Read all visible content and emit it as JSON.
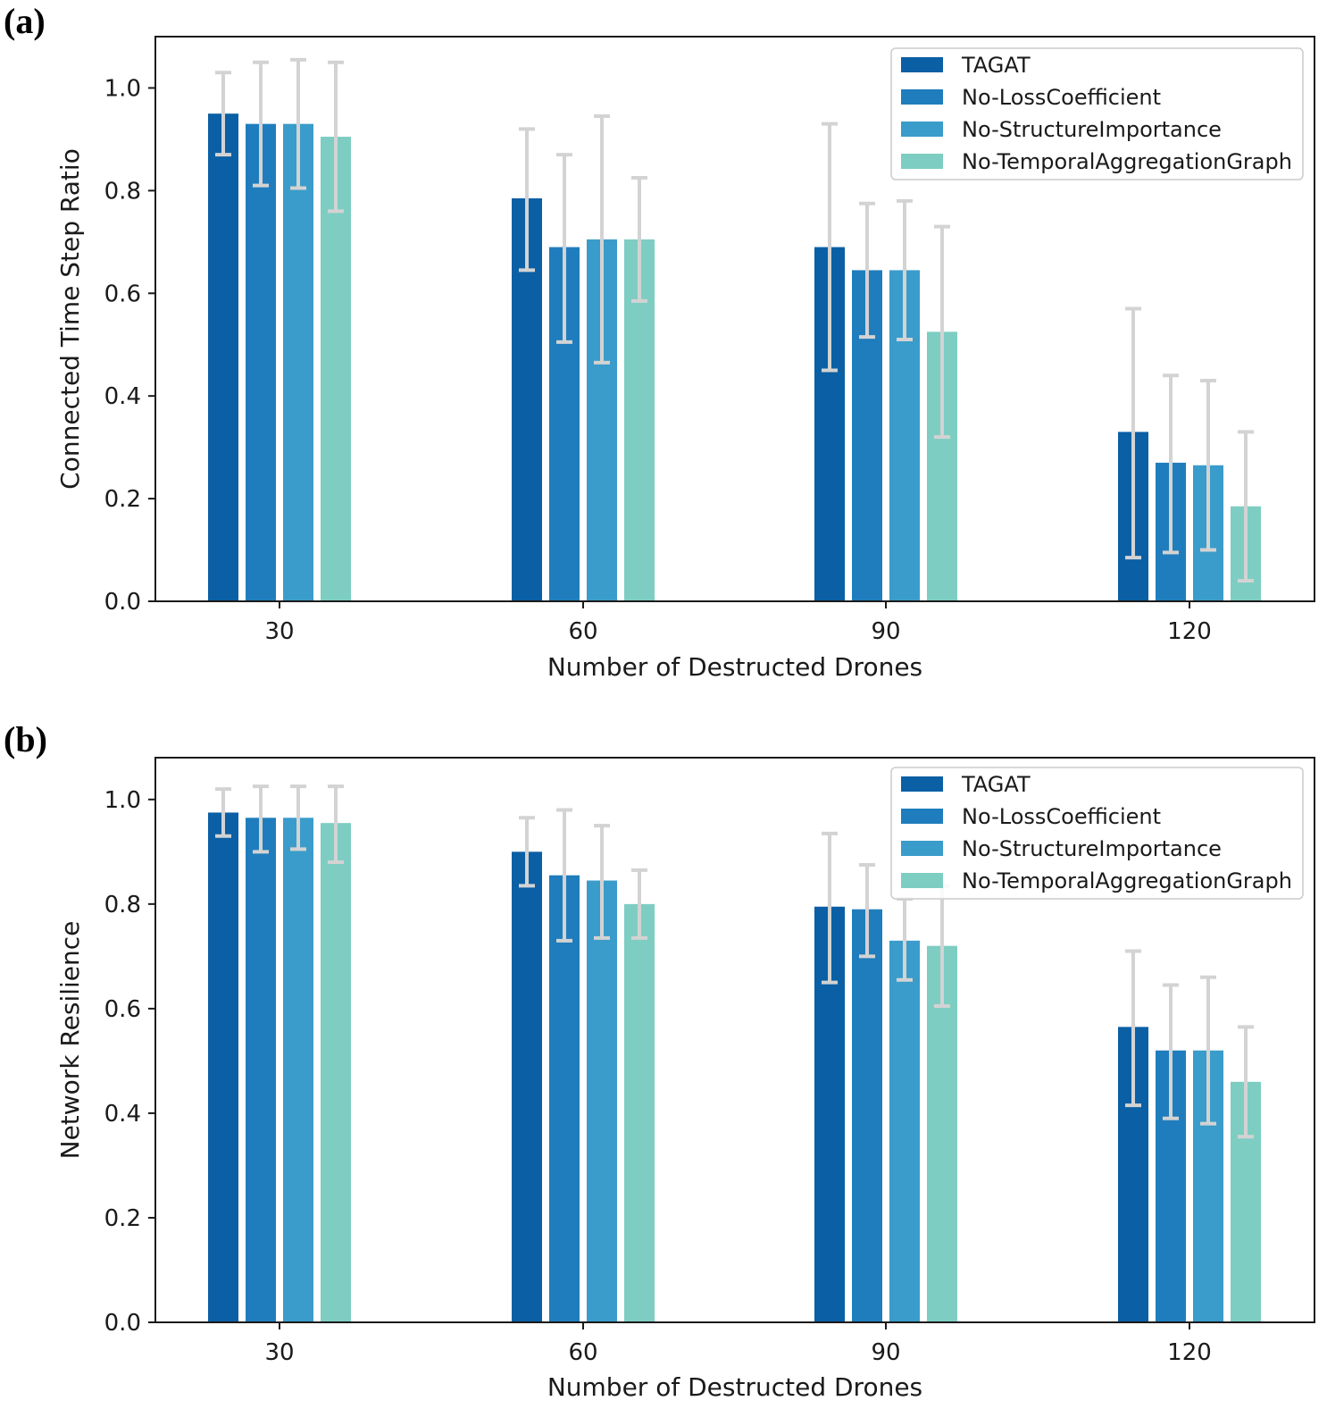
{
  "chart_data": [
    {
      "panel": "(a)",
      "type": "bar",
      "categories": [
        "30",
        "60",
        "90",
        "120"
      ],
      "xlabel": "Number of Destructed Drones",
      "ylabel": "Connected Time Step Ratio",
      "ylim": [
        0,
        1.1
      ],
      "yticks": [
        "0.0",
        "0.2",
        "0.4",
        "0.6",
        "0.8",
        "1.0"
      ],
      "legend_position": "top-right",
      "series": [
        {
          "name": "TAGAT",
          "color": "#0a5fa5",
          "values": [
            0.95,
            0.785,
            0.69,
            0.33
          ],
          "err_low": [
            0.87,
            0.645,
            0.45,
            0.085
          ],
          "err_high": [
            1.03,
            0.92,
            0.93,
            0.57
          ]
        },
        {
          "name": "No-LossCoefficient",
          "color": "#1f7dbd",
          "values": [
            0.93,
            0.69,
            0.645,
            0.27
          ],
          "err_low": [
            0.81,
            0.505,
            0.515,
            0.095
          ],
          "err_high": [
            1.05,
            0.87,
            0.775,
            0.44
          ]
        },
        {
          "name": "No-StructureImportance",
          "color": "#3a9cca",
          "values": [
            0.93,
            0.705,
            0.645,
            0.265
          ],
          "err_low": [
            0.805,
            0.465,
            0.51,
            0.1
          ],
          "err_high": [
            1.055,
            0.945,
            0.78,
            0.43
          ]
        },
        {
          "name": "No-TemporalAggregationGraph",
          "color": "#7dcdc2",
          "values": [
            0.905,
            0.705,
            0.525,
            0.185
          ],
          "err_low": [
            0.76,
            0.585,
            0.32,
            0.04
          ],
          "err_high": [
            1.05,
            0.825,
            0.73,
            0.33
          ]
        }
      ]
    },
    {
      "panel": "(b)",
      "type": "bar",
      "categories": [
        "30",
        "60",
        "90",
        "120"
      ],
      "xlabel": "Number of Destructed Drones",
      "ylabel": "Network Resilience",
      "ylim": [
        0,
        1.08
      ],
      "yticks": [
        "0.0",
        "0.2",
        "0.4",
        "0.6",
        "0.8",
        "1.0"
      ],
      "legend_position": "top-right",
      "series": [
        {
          "name": "TAGAT",
          "color": "#0a5fa5",
          "values": [
            0.975,
            0.9,
            0.795,
            0.565
          ],
          "err_low": [
            0.93,
            0.835,
            0.65,
            0.415
          ],
          "err_high": [
            1.02,
            0.965,
            0.935,
            0.71
          ]
        },
        {
          "name": "No-LossCoefficient",
          "color": "#1f7dbd",
          "values": [
            0.965,
            0.855,
            0.79,
            0.52
          ],
          "err_low": [
            0.9,
            0.73,
            0.7,
            0.39
          ],
          "err_high": [
            1.025,
            0.98,
            0.875,
            0.645
          ]
        },
        {
          "name": "No-StructureImportance",
          "color": "#3a9cca",
          "values": [
            0.965,
            0.845,
            0.73,
            0.52
          ],
          "err_low": [
            0.905,
            0.735,
            0.655,
            0.38
          ],
          "err_high": [
            1.025,
            0.95,
            0.81,
            0.66
          ]
        },
        {
          "name": "No-TemporalAggregationGraph",
          "color": "#7dcdc2",
          "values": [
            0.955,
            0.8,
            0.72,
            0.46
          ],
          "err_low": [
            0.88,
            0.735,
            0.605,
            0.355
          ],
          "err_high": [
            1.025,
            0.865,
            0.835,
            0.565
          ]
        }
      ]
    }
  ]
}
